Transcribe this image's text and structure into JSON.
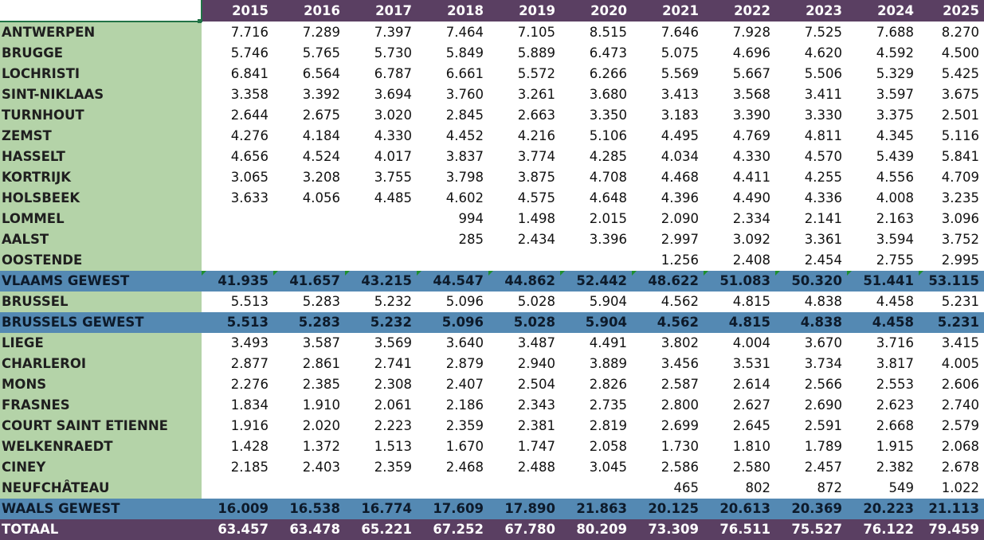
{
  "sheet": {
    "years": [
      "2015",
      "2016",
      "2017",
      "2018",
      "2019",
      "2020",
      "2021",
      "2022",
      "2023",
      "2024",
      "2025"
    ],
    "rows": [
      {
        "name": "ANTWERPEN",
        "values": [
          "7.716",
          "7.289",
          "7.397",
          "7.464",
          "7.105",
          "8.515",
          "7.646",
          "7.928",
          "7.525",
          "7.688",
          "8.270"
        ]
      },
      {
        "name": "BRUGGE",
        "values": [
          "5.746",
          "5.765",
          "5.730",
          "5.849",
          "5.889",
          "6.473",
          "5.075",
          "4.696",
          "4.620",
          "4.592",
          "4.500"
        ]
      },
      {
        "name": "LOCHRISTI",
        "values": [
          "6.841",
          "6.564",
          "6.787",
          "6.661",
          "5.572",
          "6.266",
          "5.569",
          "5.667",
          "5.506",
          "5.329",
          "5.425"
        ]
      },
      {
        "name": "SINT-NIKLAAS",
        "values": [
          "3.358",
          "3.392",
          "3.694",
          "3.760",
          "3.261",
          "3.680",
          "3.413",
          "3.568",
          "3.411",
          "3.597",
          "3.675"
        ]
      },
      {
        "name": "TURNHOUT",
        "values": [
          "2.644",
          "2.675",
          "3.020",
          "2.845",
          "2.663",
          "3.350",
          "3.183",
          "3.390",
          "3.330",
          "3.375",
          "2.501"
        ]
      },
      {
        "name": "ZEMST",
        "values": [
          "4.276",
          "4.184",
          "4.330",
          "4.452",
          "4.216",
          "5.106",
          "4.495",
          "4.769",
          "4.811",
          "4.345",
          "5.116"
        ]
      },
      {
        "name": "HASSELT",
        "values": [
          "4.656",
          "4.524",
          "4.017",
          "3.837",
          "3.774",
          "4.285",
          "4.034",
          "4.330",
          "4.570",
          "5.439",
          "5.841"
        ]
      },
      {
        "name": "KORTRIJK",
        "values": [
          "3.065",
          "3.208",
          "3.755",
          "3.798",
          "3.875",
          "4.708",
          "4.468",
          "4.411",
          "4.255",
          "4.556",
          "4.709"
        ]
      },
      {
        "name": "HOLSBEEK",
        "values": [
          "3.633",
          "4.056",
          "4.485",
          "4.602",
          "4.575",
          "4.648",
          "4.396",
          "4.490",
          "4.336",
          "4.008",
          "3.235"
        ]
      },
      {
        "name": "LOMMEL",
        "values": [
          "",
          "",
          "",
          "994",
          "1.498",
          "2.015",
          "2.090",
          "2.334",
          "2.141",
          "2.163",
          "3.096"
        ]
      },
      {
        "name": "AALST",
        "values": [
          "",
          "",
          "",
          "285",
          "2.434",
          "3.396",
          "2.997",
          "3.092",
          "3.361",
          "3.594",
          "3.752"
        ]
      },
      {
        "name": "OOSTENDE",
        "values": [
          "",
          "",
          "",
          "",
          "",
          "",
          "1.256",
          "2.408",
          "2.454",
          "2.755",
          "2.995"
        ]
      },
      {
        "name": "VLAAMS GEWEST",
        "type": "sub",
        "values": [
          "41.935",
          "41.657",
          "43.215",
          "44.547",
          "44.862",
          "52.442",
          "48.622",
          "51.083",
          "50.320",
          "51.441",
          "53.115"
        ]
      },
      {
        "name": "BRUSSEL",
        "values": [
          "5.513",
          "5.283",
          "5.232",
          "5.096",
          "5.028",
          "5.904",
          "4.562",
          "4.815",
          "4.838",
          "4.458",
          "5.231"
        ]
      },
      {
        "name": "BRUSSELS GEWEST",
        "type": "sub",
        "values": [
          "5.513",
          "5.283",
          "5.232",
          "5.096",
          "5.028",
          "5.904",
          "4.562",
          "4.815",
          "4.838",
          "4.458",
          "5.231"
        ]
      },
      {
        "name": "LIEGE",
        "values": [
          "3.493",
          "3.587",
          "3.569",
          "3.640",
          "3.487",
          "4.491",
          "3.802",
          "4.004",
          "3.670",
          "3.716",
          "3.415"
        ]
      },
      {
        "name": "CHARLEROI",
        "values": [
          "2.877",
          "2.861",
          "2.741",
          "2.879",
          "2.940",
          "3.889",
          "3.456",
          "3.531",
          "3.734",
          "3.817",
          "4.005"
        ]
      },
      {
        "name": "MONS",
        "values": [
          "2.276",
          "2.385",
          "2.308",
          "2.407",
          "2.504",
          "2.826",
          "2.587",
          "2.614",
          "2.566",
          "2.553",
          "2.606"
        ]
      },
      {
        "name": "FRASNES",
        "values": [
          "1.834",
          "1.910",
          "2.061",
          "2.186",
          "2.343",
          "2.735",
          "2.800",
          "2.627",
          "2.690",
          "2.623",
          "2.740"
        ]
      },
      {
        "name": "COURT SAINT ETIENNE",
        "values": [
          "1.916",
          "2.020",
          "2.223",
          "2.359",
          "2.381",
          "2.819",
          "2.699",
          "2.645",
          "2.591",
          "2.668",
          "2.579"
        ]
      },
      {
        "name": "WELKENRAEDT",
        "values": [
          "1.428",
          "1.372",
          "1.513",
          "1.670",
          "1.747",
          "2.058",
          "1.730",
          "1.810",
          "1.789",
          "1.915",
          "2.068"
        ]
      },
      {
        "name": "CINEY",
        "values": [
          "2.185",
          "2.403",
          "2.359",
          "2.468",
          "2.488",
          "3.045",
          "2.586",
          "2.580",
          "2.457",
          "2.382",
          "2.678"
        ]
      },
      {
        "name": "NEUFCHÂTEAU",
        "values": [
          "",
          "",
          "",
          "",
          "",
          "",
          "465",
          "802",
          "872",
          "549",
          "1.022"
        ]
      },
      {
        "name": "WAALS GEWEST",
        "type": "sub",
        "values": [
          "16.009",
          "16.538",
          "16.774",
          "17.609",
          "17.890",
          "21.863",
          "20.125",
          "20.613",
          "20.369",
          "20.223",
          "21.113"
        ]
      },
      {
        "name": "TOTAAL",
        "type": "total",
        "values": [
          "63.457",
          "63.478",
          "65.221",
          "67.252",
          "67.780",
          "80.209",
          "73.309",
          "76.511",
          "75.527",
          "76.122",
          "79.459"
        ]
      }
    ],
    "colors": {
      "header": "#5a3f62",
      "subtotal": "#5489b3",
      "name_column": "#b4d3a8",
      "selection": "#217346"
    }
  }
}
